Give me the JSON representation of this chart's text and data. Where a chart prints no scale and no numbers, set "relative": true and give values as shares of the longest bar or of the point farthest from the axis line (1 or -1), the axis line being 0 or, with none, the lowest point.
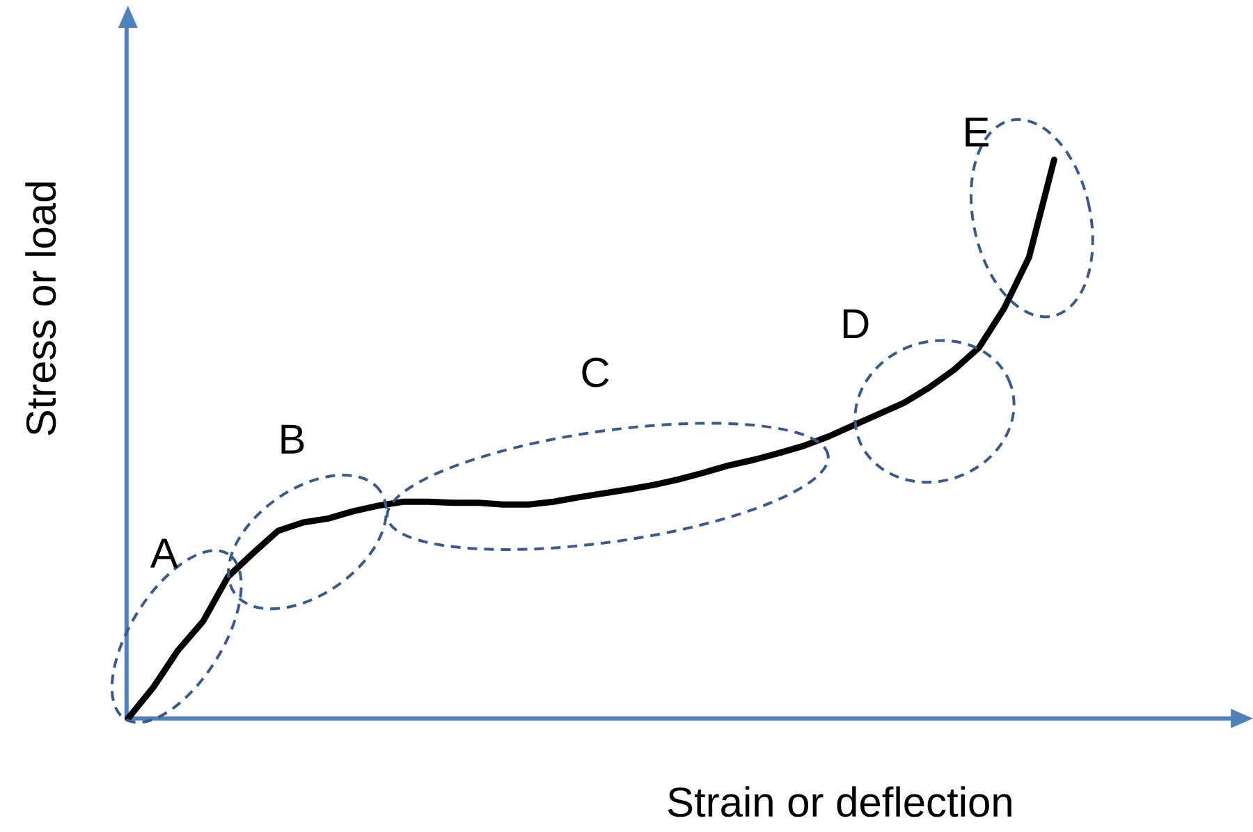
{
  "chart_data": {
    "type": "line",
    "relative": true,
    "xlabel": "Strain or deflection",
    "ylabel": "Stress or load",
    "categories": [
      null,
      null,
      null,
      null,
      null,
      null,
      null,
      null,
      null,
      null,
      null,
      null,
      null,
      null,
      null,
      null,
      null,
      null,
      null,
      null,
      null,
      null,
      null,
      null,
      null,
      null,
      null,
      null,
      null,
      null,
      null,
      null,
      null,
      null,
      null,
      null,
      null,
      null
    ],
    "values": [
      0,
      0.055,
      0.122,
      0.174,
      0.254,
      0.296,
      0.336,
      0.351,
      0.358,
      0.371,
      0.381,
      0.388,
      0.388,
      0.386,
      0.386,
      0.383,
      0.383,
      0.388,
      0.396,
      0.403,
      0.41,
      0.418,
      0.428,
      0.44,
      0.453,
      0.463,
      0.475,
      0.488,
      0.505,
      0.525,
      0.545,
      0.565,
      0.592,
      0.624,
      0.664,
      0.734,
      0.826,
      1
    ],
    "color": "#000000",
    "marker": "none",
    "line_style": "solid",
    "annotations": [
      "A",
      "B",
      "C",
      "D",
      "E"
    ]
  }
}
